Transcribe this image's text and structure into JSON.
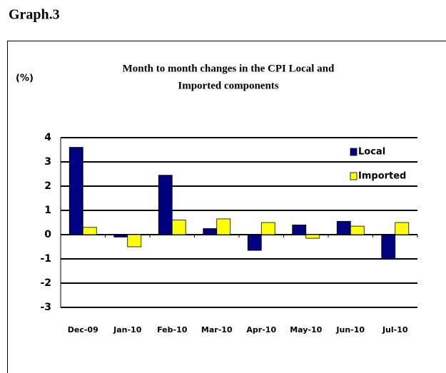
{
  "heading": "Graph.3",
  "chart_data": {
    "type": "bar",
    "title": [
      "Month to month changes in the CPI Local and",
      "Imported components"
    ],
    "y_label": "(%)",
    "categories": [
      "Dec-09",
      "Jan-10",
      "Feb-10",
      "Mar-10",
      "Apr-10",
      "May-10",
      "Jun-10",
      "Jul-10"
    ],
    "series": [
      {
        "name": "Local",
        "color": "#000080",
        "values": [
          3.6,
          -0.1,
          2.45,
          0.25,
          -0.65,
          0.4,
          0.55,
          -1.0
        ]
      },
      {
        "name": "Imported",
        "color": "#ffff00",
        "values": [
          0.3,
          -0.5,
          0.6,
          0.65,
          0.5,
          -0.15,
          0.35,
          0.5
        ]
      }
    ],
    "ylim": [
      -3,
      4
    ],
    "yticks": [
      -3,
      -2,
      -1,
      0,
      1,
      2,
      3,
      4
    ],
    "grid": true,
    "legend": "upper right"
  }
}
